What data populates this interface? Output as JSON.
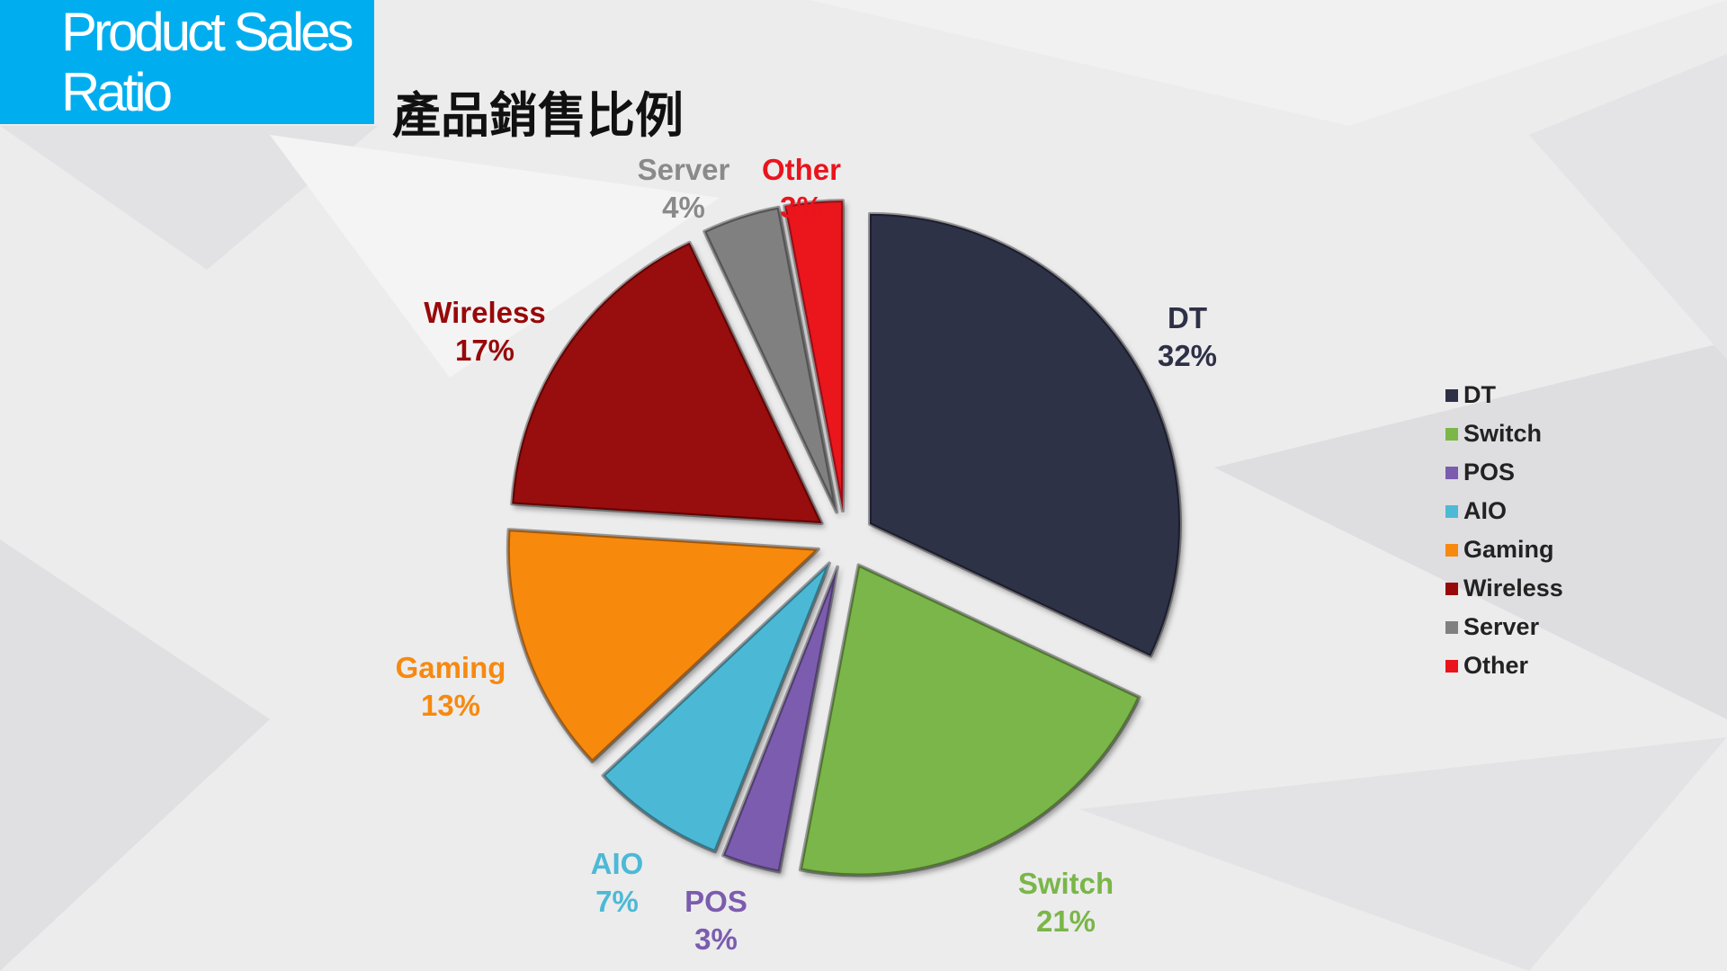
{
  "header": {
    "title_en": "Product Sales\nRatio",
    "title_zh": "產品銷售比例",
    "accent": "#00aeef"
  },
  "chart_data": {
    "type": "pie",
    "title": "產品銷售比例",
    "start": "12 o'clock, clockwise",
    "exploded": true,
    "legend_position": "right",
    "slices": [
      {
        "name": "DT",
        "value": 32,
        "label": "32%",
        "color": "#2e3047"
      },
      {
        "name": "Switch",
        "value": 21,
        "label": "21%",
        "color": "#7ab648"
      },
      {
        "name": "POS",
        "value": 3,
        "label": "3%",
        "color": "#7c5cae"
      },
      {
        "name": "AIO",
        "value": 7,
        "label": "7%",
        "color": "#4cb9d6"
      },
      {
        "name": "Gaming",
        "value": 13,
        "label": "13%",
        "color": "#f7890f"
      },
      {
        "name": "Wireless",
        "value": 17,
        "label": "17%",
        "color": "#980909"
      },
      {
        "name": "Server",
        "value": 4,
        "label": "4%",
        "color": "#808080"
      },
      {
        "name": "Other",
        "value": 3,
        "label": "3%",
        "color": "#ea141c"
      }
    ]
  }
}
